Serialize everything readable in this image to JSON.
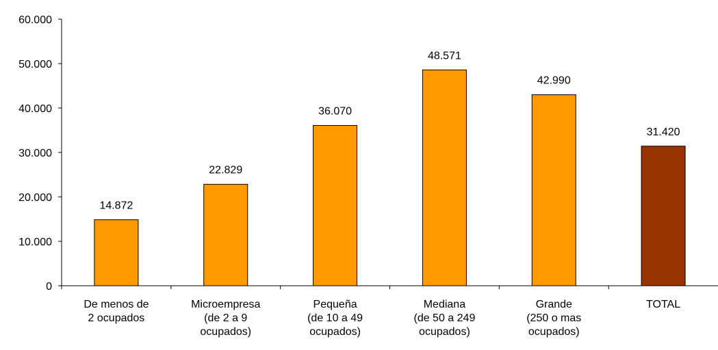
{
  "chart_data": {
    "type": "bar",
    "title": "",
    "xlabel": "",
    "ylabel": "",
    "ylim": [
      0,
      60000
    ],
    "yticks": [
      0,
      10000,
      20000,
      30000,
      40000,
      50000,
      60000
    ],
    "ytick_labels": [
      "0",
      "10.000",
      "20.000",
      "30.000",
      "40.000",
      "50.000",
      "60.000"
    ],
    "grid": false,
    "legend": "none",
    "categories": [
      [
        "De menos de",
        "2 ocupados"
      ],
      [
        "Microempresa",
        "(de 2 a 9",
        "ocupados)"
      ],
      [
        "Pequeña",
        "(de 10 a 49",
        "ocupados)"
      ],
      [
        "Mediana",
        "(de 50 a 249",
        "ocupados)"
      ],
      [
        "Grande",
        "(250 o mas",
        "ocupados)"
      ],
      [
        "TOTAL"
      ]
    ],
    "values": [
      14872,
      22829,
      36070,
      48571,
      42990,
      31420
    ],
    "value_labels": [
      "14.872",
      "22.829",
      "36.070",
      "48.571",
      "42.990",
      "31.420"
    ],
    "colors": [
      "#FF9900",
      "#FF9900",
      "#FF9900",
      "#FF9900",
      "#FF9900",
      "#993300"
    ],
    "bar_outline": "#000000"
  }
}
